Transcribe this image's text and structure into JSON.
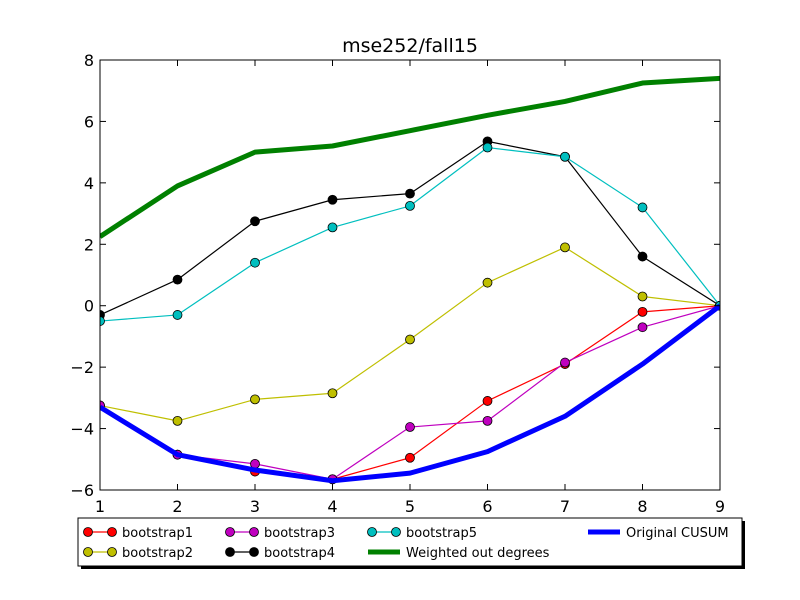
{
  "chart_data": {
    "type": "line",
    "title": "mse252/fall15",
    "xlabel": "",
    "ylabel": "",
    "xlim": [
      1,
      9
    ],
    "ylim": [
      -6,
      8
    ],
    "x": [
      1,
      2,
      3,
      4,
      5,
      6,
      7,
      8,
      9
    ],
    "xticks": [
      "1",
      "2",
      "3",
      "4",
      "5",
      "6",
      "7",
      "8",
      "9"
    ],
    "yticks": [
      -6,
      -4,
      -2,
      0,
      2,
      4,
      6,
      8
    ],
    "ytick_labels": [
      "−6",
      "−4",
      "−2",
      "0",
      "2",
      "4",
      "6",
      "8"
    ],
    "grid": false,
    "legend_placement": "below plot",
    "series": [
      {
        "name": "bootstrap1",
        "color": "#ff0000",
        "marker": true,
        "width": "thin",
        "values": [
          -3.25,
          -4.85,
          -5.4,
          -5.65,
          -4.95,
          -3.1,
          -1.9,
          -0.2,
          0
        ]
      },
      {
        "name": "bootstrap2",
        "color": "#bfbf00",
        "marker": true,
        "width": "thin",
        "values": [
          -3.25,
          -3.75,
          -3.05,
          -2.85,
          -1.1,
          0.75,
          1.9,
          0.3,
          0
        ]
      },
      {
        "name": "bootstrap3",
        "color": "#bf00bf",
        "marker": true,
        "width": "thin",
        "values": [
          -3.25,
          -4.85,
          -5.15,
          -5.65,
          -3.95,
          -3.75,
          -1.85,
          -0.7,
          0
        ]
      },
      {
        "name": "bootstrap4",
        "color": "#000000",
        "marker": true,
        "width": "thin",
        "values": [
          -0.3,
          0.85,
          2.75,
          3.45,
          3.65,
          5.35,
          4.85,
          1.6,
          0
        ]
      },
      {
        "name": "bootstrap5",
        "color": "#00bfbf",
        "marker": true,
        "width": "thin",
        "values": [
          -0.5,
          -0.3,
          1.4,
          2.55,
          3.25,
          5.15,
          4.85,
          3.2,
          0
        ]
      },
      {
        "name": "Weighted out degrees",
        "color": "#008000",
        "marker": false,
        "width": "thick",
        "values": [
          2.25,
          3.9,
          5.0,
          5.2,
          5.7,
          6.2,
          6.65,
          7.25,
          7.4
        ]
      },
      {
        "name": "Original CUSUM",
        "color": "#0000ff",
        "marker": false,
        "width": "thick",
        "values": [
          -3.3,
          -4.85,
          -5.35,
          -5.7,
          -5.45,
          -4.75,
          -3.6,
          -1.9,
          0
        ]
      }
    ]
  }
}
